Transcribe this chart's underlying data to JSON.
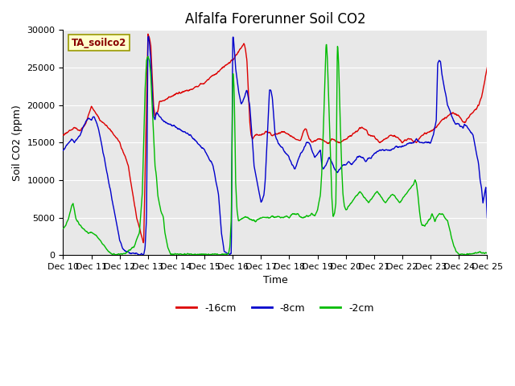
{
  "title": "Alfalfa Forerunner Soil CO2",
  "xlabel": "Time",
  "ylabel": "Soil CO2 (ppm)",
  "annotation": "TA_soilco2",
  "legend_labels": [
    "-16cm",
    "-8cm",
    "-2cm"
  ],
  "legend_colors": [
    "#dd0000",
    "#0000cc",
    "#00bb00"
  ],
  "ylim": [
    0,
    30000
  ],
  "yticks": [
    0,
    5000,
    10000,
    15000,
    20000,
    25000,
    30000
  ],
  "xtick_labels": [
    "Dec 10",
    "Dec 11",
    "Dec 12",
    "Dec 13",
    "Dec 14",
    "Dec 15",
    "Dec 16",
    "Dec 17",
    "Dec 18",
    "Dec 19",
    "Dec 20",
    "Dec 21",
    "Dec 22",
    "Dec 23",
    "Dec 24",
    "Dec 25"
  ],
  "plot_bg_color": "#e8e8e8",
  "grid_color": "#ffffff",
  "title_fontsize": 12,
  "axis_fontsize": 9,
  "tick_fontsize": 8
}
